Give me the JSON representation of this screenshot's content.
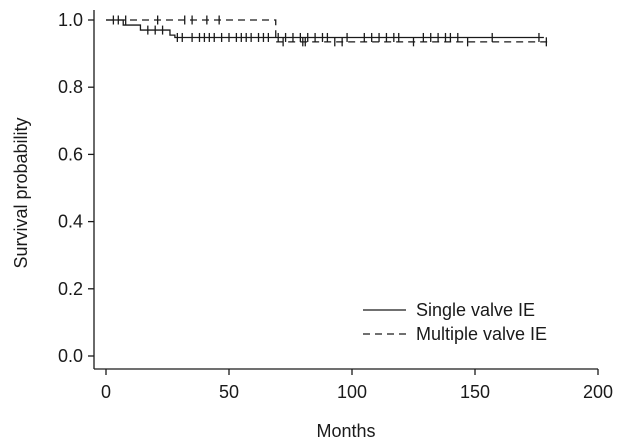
{
  "chart_data": {
    "type": "line",
    "title": "",
    "xlabel": "Months",
    "ylabel": "Survival probability",
    "xlim": [
      0,
      200
    ],
    "ylim": [
      0.0,
      1.0
    ],
    "x_ticks": [
      0,
      50,
      100,
      150,
      200
    ],
    "y_ticks": [
      0.0,
      0.2,
      0.4,
      0.6,
      0.8,
      1.0
    ],
    "x_tick_labels": [
      "0",
      "50",
      "100",
      "150",
      "200"
    ],
    "y_tick_labels": [
      "0.0",
      "0.2",
      "0.4",
      "0.6",
      "0.8",
      "1.0"
    ],
    "grid": false,
    "legend_position": "bottom-right",
    "series": [
      {
        "name": "Single valve IE",
        "line_style": "solid",
        "steps": [
          {
            "x": 0,
            "y": 1.0
          },
          {
            "x": 7,
            "y": 0.985
          },
          {
            "x": 14,
            "y": 0.97
          },
          {
            "x": 26,
            "y": 0.955
          },
          {
            "x": 28,
            "y": 0.948
          },
          {
            "x": 178,
            "y": 0.948
          }
        ],
        "censored": [
          {
            "x": 3,
            "y": 1.0
          },
          {
            "x": 5,
            "y": 1.0
          },
          {
            "x": 17,
            "y": 0.97
          },
          {
            "x": 20,
            "y": 0.97
          },
          {
            "x": 23,
            "y": 0.97
          },
          {
            "x": 29,
            "y": 0.948
          },
          {
            "x": 31,
            "y": 0.948
          },
          {
            "x": 35,
            "y": 0.948
          },
          {
            "x": 38,
            "y": 0.948
          },
          {
            "x": 40,
            "y": 0.948
          },
          {
            "x": 42,
            "y": 0.948
          },
          {
            "x": 44,
            "y": 0.948
          },
          {
            "x": 47,
            "y": 0.948
          },
          {
            "x": 50,
            "y": 0.948
          },
          {
            "x": 53,
            "y": 0.948
          },
          {
            "x": 55,
            "y": 0.948
          },
          {
            "x": 57,
            "y": 0.948
          },
          {
            "x": 59,
            "y": 0.948
          },
          {
            "x": 62,
            "y": 0.948
          },
          {
            "x": 64,
            "y": 0.948
          },
          {
            "x": 66,
            "y": 0.948
          },
          {
            "x": 70,
            "y": 0.948
          },
          {
            "x": 73,
            "y": 0.948
          },
          {
            "x": 76,
            "y": 0.948
          },
          {
            "x": 79,
            "y": 0.948
          },
          {
            "x": 82,
            "y": 0.948
          },
          {
            "x": 85,
            "y": 0.948
          },
          {
            "x": 88,
            "y": 0.948
          },
          {
            "x": 90,
            "y": 0.948
          },
          {
            "x": 98,
            "y": 0.948
          },
          {
            "x": 105,
            "y": 0.948
          },
          {
            "x": 108,
            "y": 0.948
          },
          {
            "x": 111,
            "y": 0.948
          },
          {
            "x": 114,
            "y": 0.948
          },
          {
            "x": 117,
            "y": 0.948
          },
          {
            "x": 119,
            "y": 0.948
          },
          {
            "x": 129,
            "y": 0.948
          },
          {
            "x": 132,
            "y": 0.948
          },
          {
            "x": 135,
            "y": 0.948
          },
          {
            "x": 138,
            "y": 0.948
          },
          {
            "x": 140,
            "y": 0.948
          },
          {
            "x": 143,
            "y": 0.948
          },
          {
            "x": 157,
            "y": 0.948
          },
          {
            "x": 176,
            "y": 0.948
          }
        ]
      },
      {
        "name": "Multiple valve IE",
        "line_style": "dashed",
        "steps": [
          {
            "x": 0,
            "y": 1.0
          },
          {
            "x": 68,
            "y": 1.0
          },
          {
            "x": 69,
            "y": 0.935
          },
          {
            "x": 180,
            "y": 0.935
          }
        ],
        "censored": [
          {
            "x": 8,
            "y": 1.0
          },
          {
            "x": 21,
            "y": 1.0
          },
          {
            "x": 32,
            "y": 1.0
          },
          {
            "x": 35,
            "y": 1.0
          },
          {
            "x": 41,
            "y": 1.0
          },
          {
            "x": 46,
            "y": 1.0
          },
          {
            "x": 72,
            "y": 0.935
          },
          {
            "x": 80,
            "y": 0.935
          },
          {
            "x": 81,
            "y": 0.935
          },
          {
            "x": 93,
            "y": 0.935
          },
          {
            "x": 96,
            "y": 0.935
          },
          {
            "x": 125,
            "y": 0.935
          },
          {
            "x": 147,
            "y": 0.935
          },
          {
            "x": 179,
            "y": 0.935
          }
        ]
      }
    ]
  }
}
